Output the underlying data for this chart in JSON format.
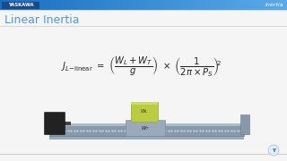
{
  "title": "Linear Inertia",
  "header_label": "YASKAWA",
  "corner_label": "Inertia",
  "header_bg_left": "#1A6EBF",
  "header_bg_right": "#4AAAE0",
  "yaskawa_bg": "#1A4A8A",
  "header_text_color": "#FFFFFF",
  "bg_color": "#F5F5F5",
  "title_color": "#5599CC",
  "formula_color": "#333333",
  "rail_color": "#8899AA",
  "rail_dark": "#667788",
  "motor_color": "#222222",
  "carriage_color": "#8899AA",
  "load_color_top": "#BBCC44",
  "load_color": "#99AA22",
  "bracket_color": "#8899AA",
  "dot_color": "#BBCCDD",
  "wl_text": "#333300",
  "wt_text": "#111111"
}
